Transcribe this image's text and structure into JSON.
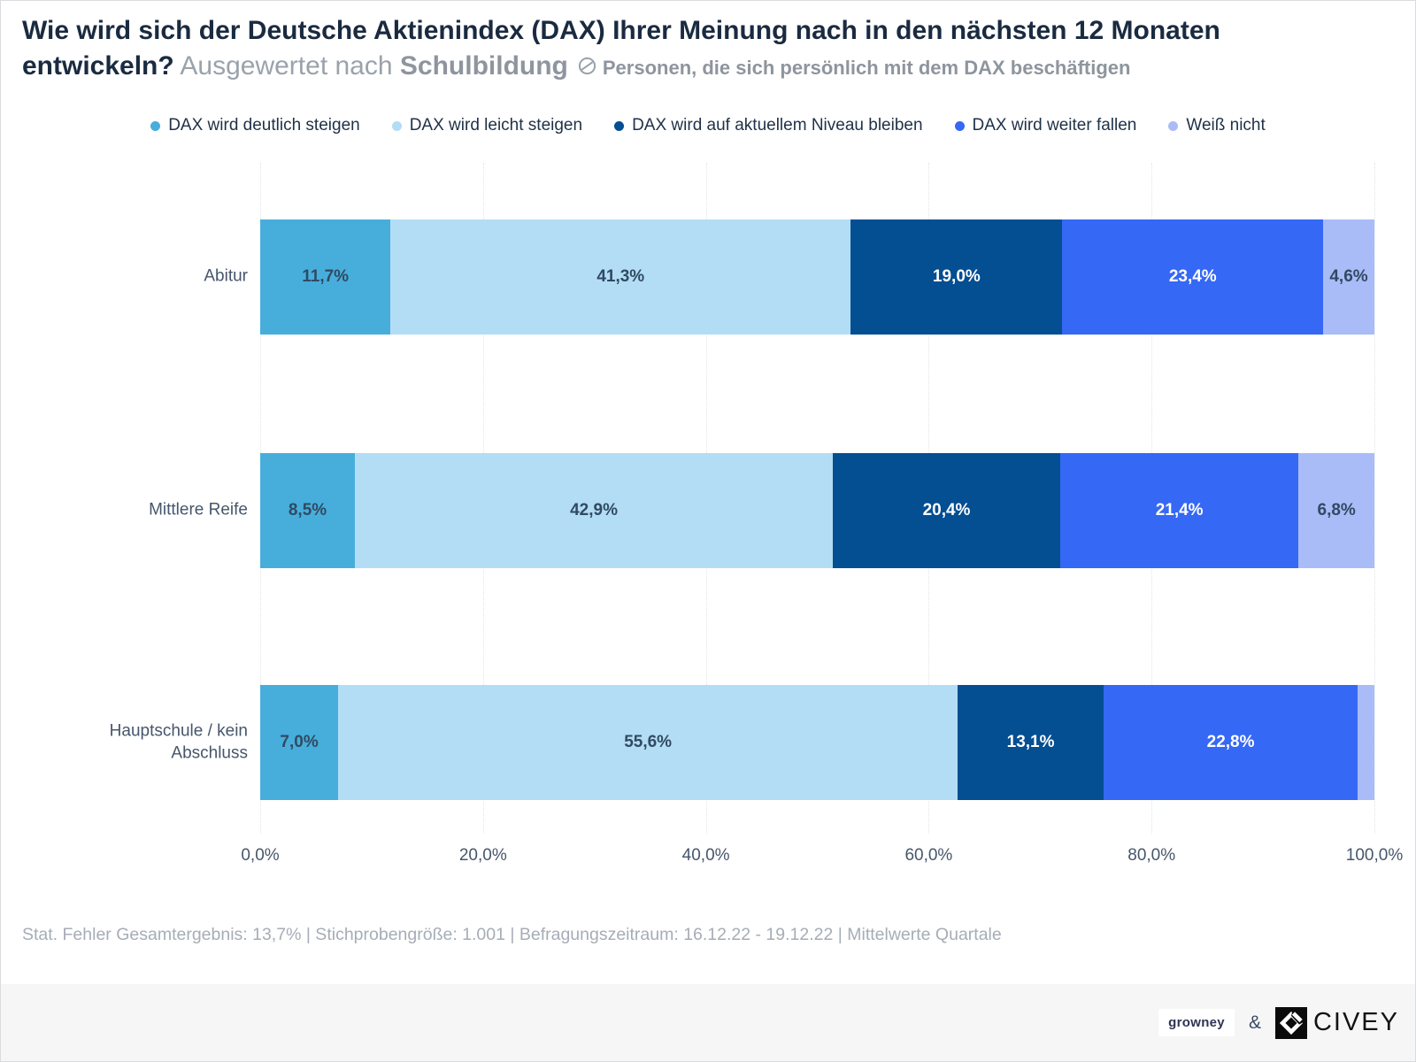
{
  "header": {
    "title_line1": "Wie wird sich der Deutsche Aktienindex (DAX) Ihrer Meinung nach in den nächsten 12 Monaten",
    "title_line2_bold": "entwickeln?",
    "subtitle_prefix": " Ausgewertet nach ",
    "subtitle_bold": "Schulbildung",
    "subtitle_note": "Personen, die sich persönlich mit dem DAX beschäftigen",
    "note_icon": "excluded-subpopulation-icon"
  },
  "chart_data": {
    "type": "bar",
    "variant": "horizontal_stacked",
    "categories": [
      "Abitur",
      "Mittlere Reife",
      "Hauptschule / kein Abschluss"
    ],
    "series": [
      {
        "name": "DAX wird deutlich steigen",
        "color": "#47aedc",
        "label_color": "#304a62",
        "values": [
          11.7,
          8.5,
          7.0
        ],
        "labels": [
          "11,7%",
          "8,5%",
          "7,0%"
        ]
      },
      {
        "name": "DAX wird leicht steigen",
        "color": "#b3ddf5",
        "label_color": "#304a62",
        "values": [
          41.3,
          42.9,
          55.6
        ],
        "labels": [
          "41,3%",
          "42,9%",
          "55,6%"
        ]
      },
      {
        "name": "DAX wird auf aktuellem Niveau bleiben",
        "color": "#044e92",
        "label_color": "#ffffff",
        "values": [
          19.0,
          20.4,
          13.1
        ],
        "labels": [
          "19,0%",
          "20,4%",
          "13,1%"
        ]
      },
      {
        "name": "DAX wird weiter fallen",
        "color": "#3568f4",
        "label_color": "#ffffff",
        "values": [
          23.4,
          21.4,
          22.8
        ],
        "labels": [
          "23,4%",
          "21,4%",
          "22,8%"
        ]
      },
      {
        "name": "Weiß nicht",
        "color": "#a9bcf8",
        "label_color": "#304a62",
        "values": [
          4.6,
          6.8,
          1.5
        ],
        "labels": [
          "4,6%",
          "6,8%",
          ""
        ]
      }
    ],
    "xlim": [
      0,
      100
    ],
    "x_ticks": [
      "0,0%",
      "20,0%",
      "40,0%",
      "60,0%",
      "80,0%",
      "100,0%"
    ],
    "grid": "vertical-dotted",
    "legend_position": "top-center"
  },
  "footer": {
    "note": "Stat. Fehler Gesamtergebnis: 13,7% | Stichprobengröße: 1.001 | Befragungszeitraum: 16.12.22 - 19.12.22 | Mittelwerte Quartale"
  },
  "branding": {
    "growney": "growney",
    "amp": "&",
    "civey": "CIVEY"
  }
}
